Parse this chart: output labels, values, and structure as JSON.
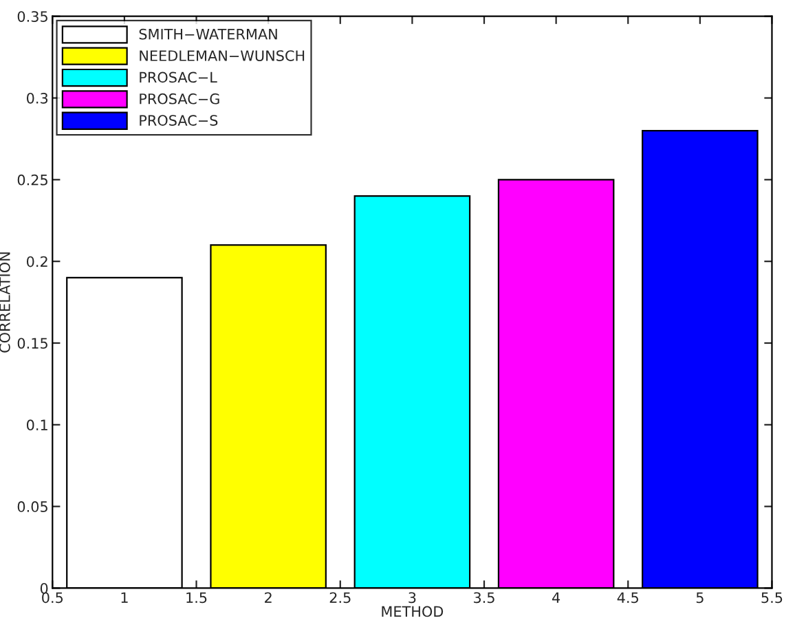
{
  "chart_data": {
    "type": "bar",
    "xlabel": "METHOD",
    "ylabel": "CORRELATION",
    "xlim": [
      0.5,
      5.5
    ],
    "xticks": [
      0.5,
      1,
      1.5,
      2,
      2.5,
      3,
      3.5,
      4,
      4.5,
      5,
      5.5
    ],
    "ylim": [
      0,
      0.35
    ],
    "yticks": [
      0,
      0.05,
      0.1,
      0.15,
      0.2,
      0.25,
      0.3,
      0.35
    ],
    "legend": "top left",
    "grid": false,
    "series": [
      {
        "name": "SMITH−WATERMAN",
        "color": "#ffffff",
        "x": [
          1
        ],
        "values": [
          0.19
        ]
      },
      {
        "name": "NEEDLEMAN−WUNSCH",
        "color": "#ffff00",
        "x": [
          2
        ],
        "values": [
          0.21
        ]
      },
      {
        "name": "PROSAC−L",
        "color": "#00ffff",
        "x": [
          3
        ],
        "values": [
          0.24
        ]
      },
      {
        "name": "PROSAC−G",
        "color": "#ff00ff",
        "x": [
          4
        ],
        "values": [
          0.25
        ]
      },
      {
        "name": "PROSAC−S",
        "color": "#0000ff",
        "x": [
          5
        ],
        "values": [
          0.28
        ]
      }
    ]
  }
}
